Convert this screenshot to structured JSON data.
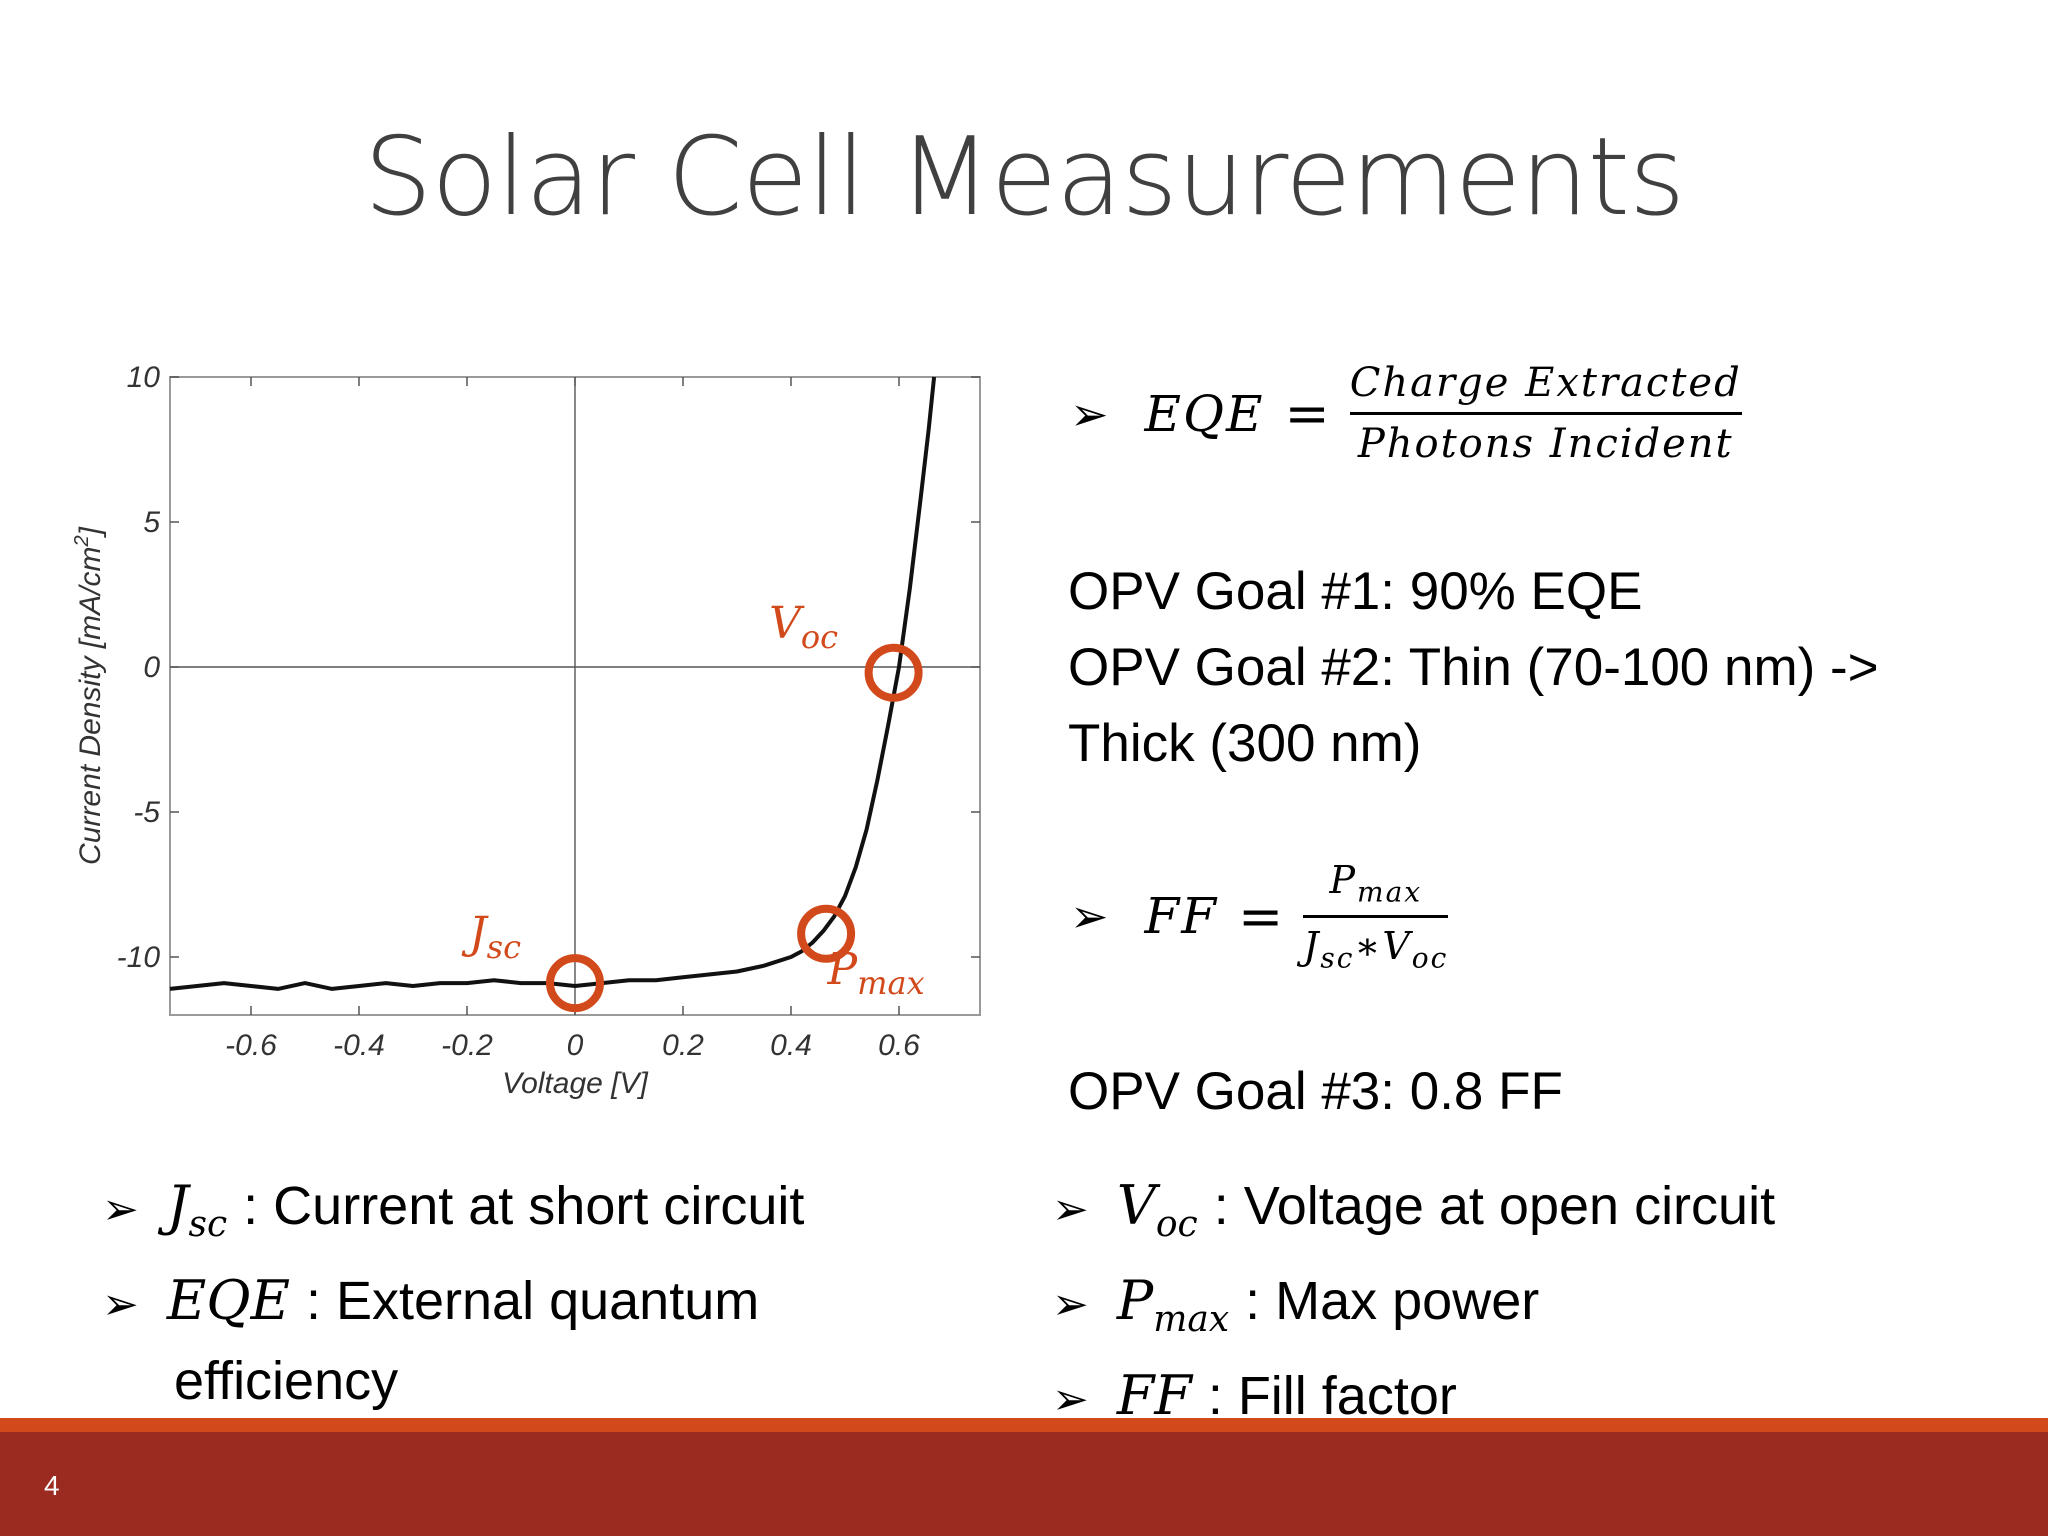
{
  "slide": {
    "title": "Solar Cell Measurements",
    "page_number": "4"
  },
  "colors": {
    "accent": "#d24a1c",
    "footer": "#9b2a20",
    "title": "#404040"
  },
  "chart_data": {
    "type": "line",
    "xlabel": "Voltage [V]",
    "ylabel": "Current Density [mA/cm",
    "ylabel_sup": "2",
    "ylabel_end": "]",
    "xlim": [
      -0.75,
      0.75
    ],
    "ylim": [
      -12,
      10
    ],
    "x_ticks": [
      -0.6,
      -0.4,
      -0.2,
      0,
      0.2,
      0.4,
      0.6
    ],
    "x_tick_labels": [
      "-0.6",
      "-0.4",
      "-0.2",
      "0",
      "0.2",
      "0.4",
      "0.6"
    ],
    "y_ticks": [
      10,
      5,
      0,
      -5,
      -10
    ],
    "y_tick_labels": [
      "10",
      "5",
      "0",
      "-5",
      "-10"
    ],
    "grid": "zero lines only",
    "series": [
      {
        "x": [
          -0.75,
          -0.7,
          -0.65,
          -0.6,
          -0.55,
          -0.5,
          -0.45,
          -0.4,
          -0.35,
          -0.3,
          -0.25,
          -0.2,
          -0.15,
          -0.1,
          -0.05,
          0,
          0.05,
          0.1,
          0.15,
          0.2,
          0.25,
          0.3,
          0.35,
          0.4,
          0.42,
          0.44,
          0.46,
          0.48,
          0.5,
          0.52,
          0.54,
          0.56,
          0.58,
          0.6,
          0.62,
          0.64,
          0.655,
          0.665
        ],
        "y": [
          -11.1,
          -11.0,
          -10.9,
          -11.0,
          -11.1,
          -10.9,
          -11.1,
          -11.0,
          -10.9,
          -11.0,
          -10.9,
          -10.9,
          -10.8,
          -10.9,
          -10.9,
          -11.0,
          -10.9,
          -10.8,
          -10.8,
          -10.7,
          -10.6,
          -10.5,
          -10.3,
          -10.0,
          -9.8,
          -9.5,
          -9.1,
          -8.6,
          -7.9,
          -6.9,
          -5.6,
          -3.9,
          -2.0,
          0.0,
          2.7,
          5.8,
          8.2,
          10.0
        ]
      }
    ],
    "annotations": [
      {
        "name": "Voc",
        "sub": "oc",
        "base": "V",
        "x": 0.59,
        "y": -0.2
      },
      {
        "name": "Jsc",
        "sub": "sc",
        "base": "J",
        "x": 0.0,
        "y": -10.9
      },
      {
        "name": "Pmax",
        "sub": "max",
        "base": "P",
        "x": 0.465,
        "y": -9.2
      }
    ]
  },
  "equations": {
    "eqe": {
      "lhs": "EQE",
      "eq": "=",
      "numerator": "Charge Extracted",
      "denominator": "Photons Incident"
    },
    "ff": {
      "lhs": "FF",
      "eq": "=",
      "num_base": "P",
      "num_sub": "max",
      "den_base1": "J",
      "den_sub1": "sc",
      "den_op": "∗",
      "den_base2": "V",
      "den_sub2": "oc"
    },
    "arrow": "➢"
  },
  "goals": {
    "goal1": "OPV Goal #1: 90% EQE",
    "goal2_line1": "OPV Goal #2: Thin (70-100 nm) ->",
    "goal2_line2": "Thick (300 nm)",
    "goal3": "OPV Goal #3: 0.8 FF"
  },
  "definitions_left": {
    "jsc": {
      "base": "J",
      "sub": "sc",
      "text": ": Current at short circuit"
    },
    "eqe": {
      "base": "EQE",
      "text": ": External quantum",
      "cont": "efficiency"
    }
  },
  "definitions_right": {
    "voc": {
      "base": "V",
      "sub": "oc",
      "text": ": Voltage at open circuit"
    },
    "pmax": {
      "base": "P",
      "sub": "max",
      "text": ": Max power"
    },
    "ff": {
      "base": "FF",
      "text": ": Fill factor"
    }
  }
}
